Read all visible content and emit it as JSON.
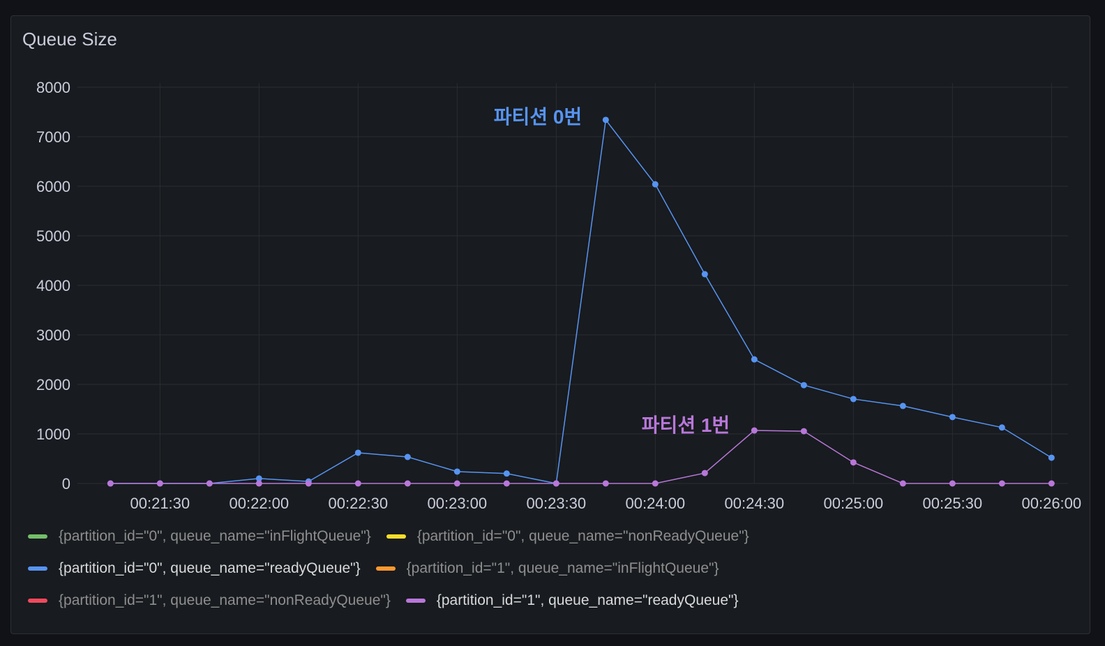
{
  "chart_data": {
    "type": "line",
    "title": "Queue Size",
    "x": [
      "00:21:15",
      "00:21:30",
      "00:21:45",
      "00:22:00",
      "00:22:15",
      "00:22:30",
      "00:22:45",
      "00:23:00",
      "00:23:15",
      "00:23:30",
      "00:23:45",
      "00:24:00",
      "00:24:15",
      "00:24:30",
      "00:24:45",
      "00:25:00",
      "00:25:15",
      "00:25:30",
      "00:25:45",
      "00:26:00"
    ],
    "xlim": [
      "00:21:05",
      "00:26:05"
    ],
    "xticks": [
      "00:21:30",
      "00:22:00",
      "00:22:30",
      "00:23:00",
      "00:23:30",
      "00:24:00",
      "00:24:30",
      "00:25:00",
      "00:25:30",
      "00:26:00"
    ],
    "ylim": [
      0,
      8000
    ],
    "yticks": [
      0,
      1000,
      2000,
      3000,
      4000,
      5000,
      6000,
      7000,
      8000
    ],
    "grid": true,
    "series": [
      {
        "name": "{partition_id=\"0\", queue_name=\"inFlightQueue\"}",
        "color": "#73bf69",
        "hidden": true
      },
      {
        "name": "{partition_id=\"0\", queue_name=\"nonReadyQueue\"}",
        "color": "#fade2a",
        "hidden": true
      },
      {
        "name": "{partition_id=\"0\", queue_name=\"readyQueue\"}",
        "color": "#5794f2",
        "hidden": false,
        "values": [
          0,
          0,
          0,
          100,
          40,
          620,
          535,
          240,
          200,
          0,
          7340,
          6040,
          4225,
          2505,
          1985,
          1705,
          1565,
          1340,
          1130,
          520
        ]
      },
      {
        "name": "{partition_id=\"1\", queue_name=\"inFlightQueue\"}",
        "color": "#ff9830",
        "hidden": true
      },
      {
        "name": "{partition_id=\"1\", queue_name=\"nonReadyQueue\"}",
        "color": "#f2495c",
        "hidden": true
      },
      {
        "name": "{partition_id=\"1\", queue_name=\"readyQueue\"}",
        "color": "#b877d9",
        "hidden": false,
        "values": [
          0,
          0,
          0,
          0,
          0,
          0,
          0,
          0,
          0,
          0,
          0,
          0,
          210,
          1070,
          1055,
          425,
          0,
          0,
          0,
          0
        ]
      }
    ],
    "annotations": [
      {
        "text": "파티션 0번",
        "color": "#5794f2"
      },
      {
        "text": "파티션 1번",
        "color": "#b877d9"
      }
    ]
  }
}
